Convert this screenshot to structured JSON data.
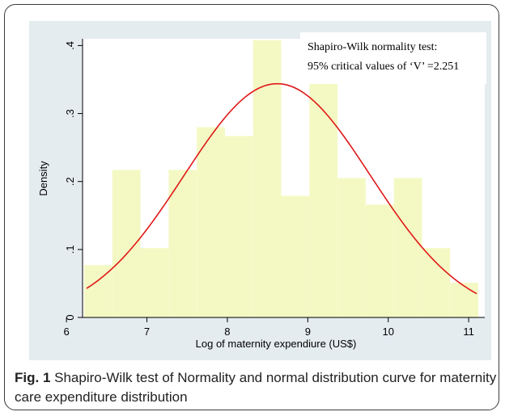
{
  "caption": {
    "label": "Fig. 1",
    "text": " Shapiro-Wilk test of Normality and normal distribution curve for maternity care expenditure distribution"
  },
  "chart_data": {
    "type": "bar",
    "xlabel": "Log of maternity expendiure (US$)",
    "ylabel": "Density",
    "xlim": [
      6.2,
      11.2
    ],
    "ylim": [
      0,
      0.41
    ],
    "xticks": [
      "6",
      "7",
      "8",
      "9",
      "10",
      "11"
    ],
    "yticks": [
      "0",
      ".1",
      ".2",
      ".3",
      ".4"
    ],
    "grid": false,
    "histogram": {
      "bins": [
        {
          "x0": 6.22,
          "x1": 6.57,
          "density": 0.077
        },
        {
          "x0": 6.57,
          "x1": 6.92,
          "density": 0.217
        },
        {
          "x0": 6.92,
          "x1": 7.27,
          "density": 0.102
        },
        {
          "x0": 7.27,
          "x1": 7.62,
          "density": 0.217
        },
        {
          "x0": 7.62,
          "x1": 7.97,
          "density": 0.28
        },
        {
          "x0": 7.97,
          "x1": 8.32,
          "density": 0.267
        },
        {
          "x0": 8.32,
          "x1": 8.67,
          "density": 0.408
        },
        {
          "x0": 8.67,
          "x1": 9.02,
          "density": 0.179
        },
        {
          "x0": 9.02,
          "x1": 9.37,
          "density": 0.352
        },
        {
          "x0": 9.37,
          "x1": 9.72,
          "density": 0.205
        },
        {
          "x0": 9.72,
          "x1": 10.07,
          "density": 0.166
        },
        {
          "x0": 10.07,
          "x1": 10.42,
          "density": 0.205
        },
        {
          "x0": 10.42,
          "x1": 10.77,
          "density": 0.102
        },
        {
          "x0": 10.77,
          "x1": 11.12,
          "density": 0.051
        }
      ]
    },
    "normal_curve": {
      "mean": 8.62,
      "sd": 1.16,
      "x_from": 6.25,
      "x_to": 11.1
    },
    "annotation": {
      "line1": "Shapiro-Wilk normality test:",
      "line2": "95% critical values of ‘V’ =2.251"
    },
    "colors": {
      "bar_fill": "#f4f9c4",
      "curve": "#e01818",
      "panel_bg": "#e4ecf0",
      "plot_bg": "#ffffff"
    }
  }
}
